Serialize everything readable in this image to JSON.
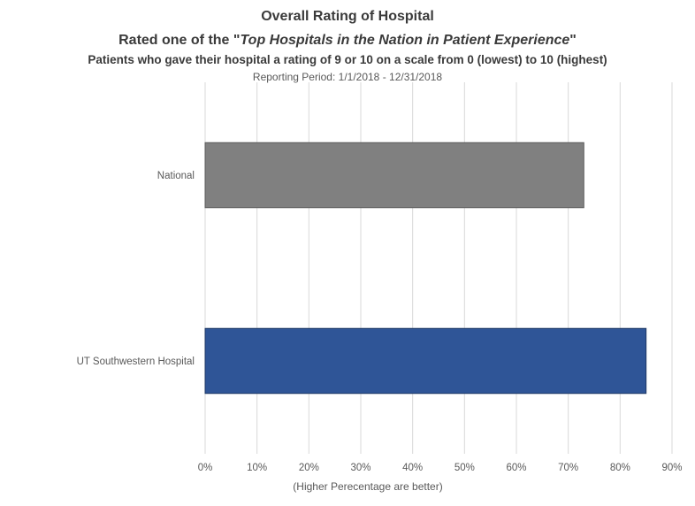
{
  "chart_data": {
    "type": "bar",
    "orientation": "horizontal",
    "title": "Overall Rating of Hospital",
    "subtitle_prefix": "Rated one of the \"",
    "subtitle_emphasis": "Top Hospitals in the Nation in Patient Experience",
    "subtitle_suffix": "\"",
    "description": "Patients who gave their hospital a rating of 9 or 10 on a scale from 0 (lowest) to 10 (highest)",
    "reporting_period": "Reporting Period: 1/1/2018 - 12/31/2018",
    "xlabel": "(Higher Perecentage are better)",
    "ylabel": "",
    "xlim": [
      0,
      90
    ],
    "xticks": [
      0,
      10,
      20,
      30,
      40,
      50,
      60,
      70,
      80,
      90
    ],
    "xtick_labels": [
      "0%",
      "10%",
      "20%",
      "30%",
      "40%",
      "50%",
      "60%",
      "70%",
      "80%",
      "90%"
    ],
    "grid": "vertical",
    "categories": [
      "National",
      "UT Southwestern Hospital"
    ],
    "values": [
      73,
      85
    ],
    "colors": [
      "#808080",
      "#2f5597"
    ],
    "border_colors": [
      "#5a5a5a",
      "#1f3864"
    ]
  }
}
